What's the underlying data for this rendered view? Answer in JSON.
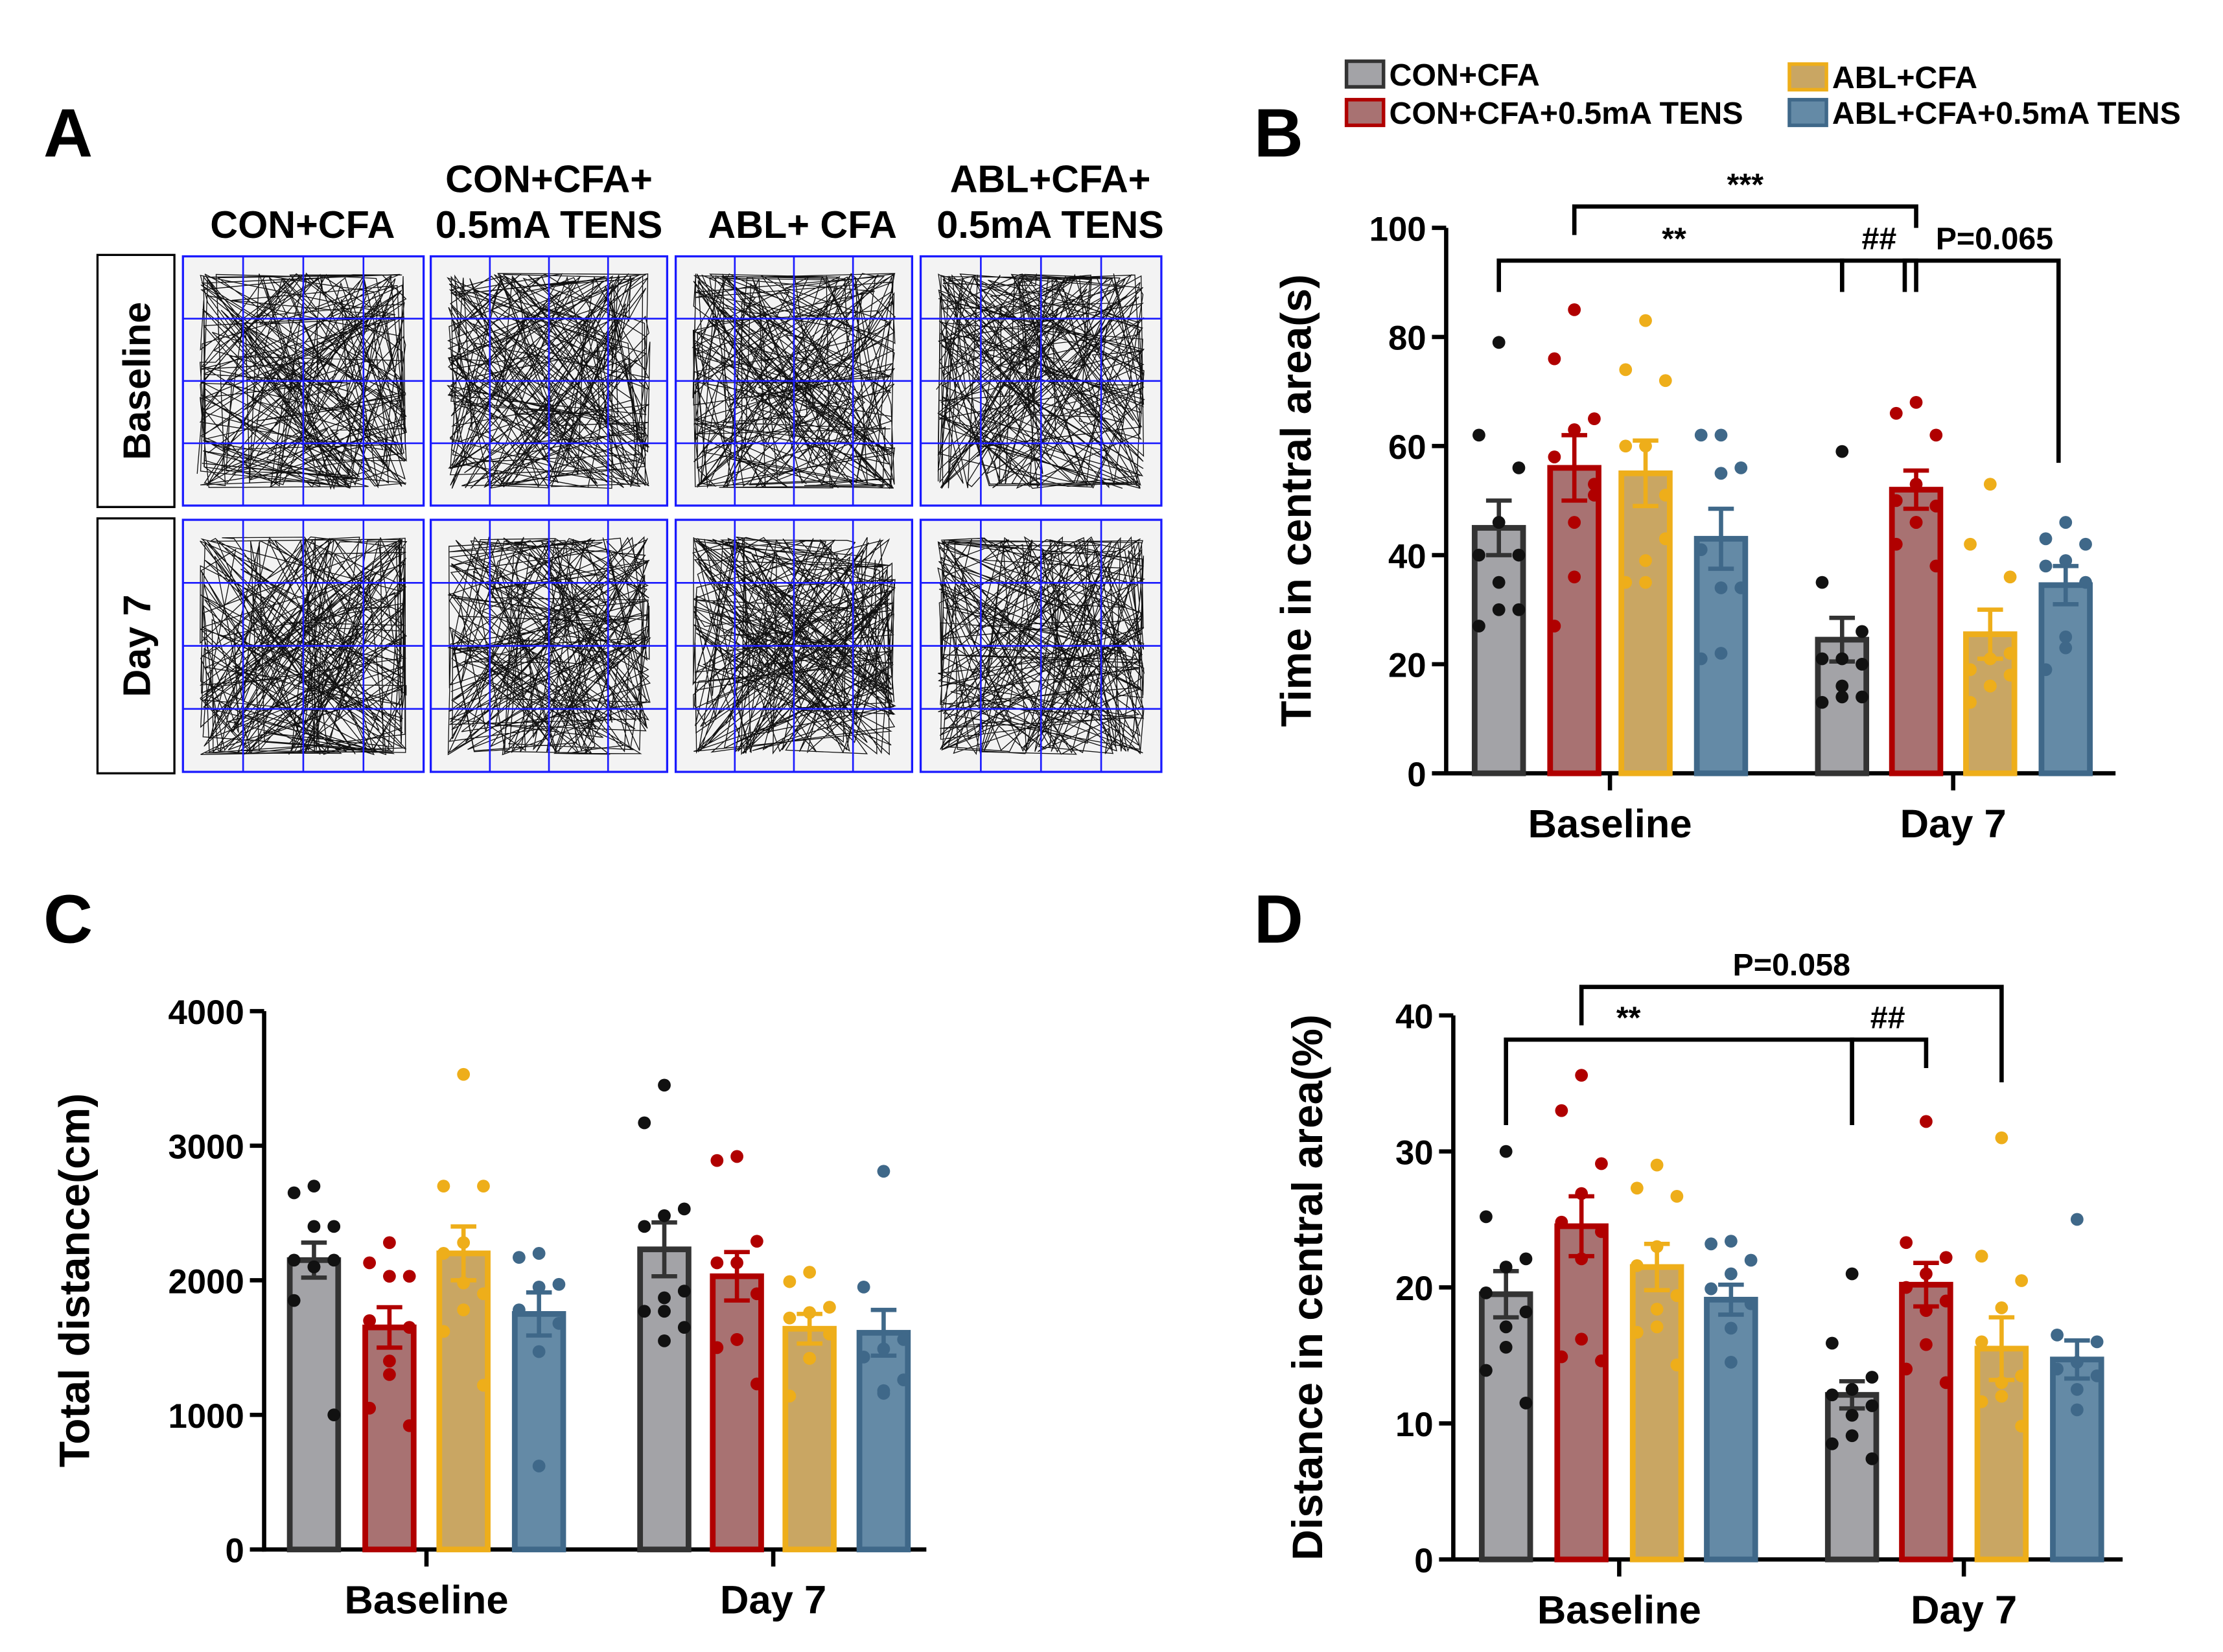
{
  "panel_labels": {
    "a": "A",
    "b": "B",
    "c": "C",
    "d": "D"
  },
  "panel_a": {
    "columns": [
      "CON+CFA",
      "CON+CFA+\n0.5mA TENS",
      "ABL+ CFA",
      "ABL+CFA+\n0.5mA TENS"
    ],
    "rows": [
      "Baseline",
      "Day 7"
    ],
    "grid_color": "#1a1aff"
  },
  "legend": {
    "items": [
      {
        "name": "CON+CFA",
        "fill": "#a3a3a7",
        "stroke": "#333333"
      },
      {
        "name": "CON+CFA+0.5mA TENS",
        "fill": "#a87272",
        "stroke": "#b00000"
      },
      {
        "name": "ABL+CFA",
        "fill": "#c9a663",
        "stroke": "#eeae1a"
      },
      {
        "name": "ABL+CFA+0.5mA TENS",
        "fill": "#648aa6",
        "stroke": "#3f6889"
      }
    ]
  },
  "dot_colors": [
    "#111111",
    "#b00000",
    "#eeae1a",
    "#3f6889"
  ],
  "chart_data": [
    {
      "panel": "B",
      "type": "bar",
      "ylabel": "Time in central area(s)",
      "ylim": [
        0,
        100
      ],
      "yticks": [
        0,
        20,
        40,
        60,
        80,
        100
      ],
      "categories": [
        "Baseline",
        "Day 7"
      ],
      "series": [
        {
          "name": "CON+CFA",
          "values": [
            45,
            24.5
          ],
          "sem": [
            5,
            4
          ],
          "points": [
            [
              79,
              62,
              56,
              46,
              40,
              40,
              35,
              30,
              27,
              30
            ],
            [
              59,
              35,
              26,
              21,
              21,
              20,
              16,
              14,
              13,
              14
            ]
          ]
        },
        {
          "name": "CON+CFA+0.5mA TENS",
          "values": [
            56,
            52
          ],
          "sem": [
            6,
            3.5
          ],
          "points": [
            [
              85,
              76,
              65,
              63,
              58,
              53,
              46,
              36,
              27,
              51
            ],
            [
              68,
              66,
              62,
              53,
              50,
              49,
              46,
              46,
              42,
              38
            ]
          ]
        },
        {
          "name": "ABL+CFA",
          "values": [
            55,
            25.5
          ],
          "sem": [
            6,
            4.5
          ],
          "points": [
            [
              83,
              74,
              72,
              60,
              60,
              43,
              39,
              35,
              35,
              51
            ],
            [
              53,
              42,
              36,
              21,
              19,
              18,
              16,
              16,
              13,
              22
            ]
          ]
        },
        {
          "name": "ABL+CFA+0.5mA TENS",
          "values": [
            43,
            34.5
          ],
          "sem": [
            5.5,
            3.5
          ],
          "points": [
            [
              62,
              62,
              56,
              55,
              41,
              34,
              34,
              22,
              21
            ],
            [
              46,
              43,
              42,
              39,
              38,
              35,
              25,
              23,
              19
            ]
          ]
        }
      ],
      "annotations": [
        {
          "text": "***",
          "from": [
            "Baseline",
            1
          ],
          "to": [
            "Day 7",
            1
          ]
        },
        {
          "text": "**",
          "from": [
            "Baseline",
            0
          ],
          "to": [
            "Day 7",
            0
          ]
        },
        {
          "text": "##",
          "from": [
            "Day 7",
            0
          ],
          "to": [
            "Day 7",
            1
          ]
        },
        {
          "text": "P=0.065",
          "from": [
            "Day 7",
            1
          ],
          "to": [
            "Day 7",
            3
          ]
        }
      ]
    },
    {
      "panel": "C",
      "type": "bar",
      "ylabel": "Total distance(cm)",
      "ylim": [
        0,
        4000
      ],
      "yticks": [
        0,
        1000,
        2000,
        3000,
        4000
      ],
      "categories": [
        "Baseline",
        "Day 7"
      ],
      "series": [
        {
          "name": "CON+CFA",
          "values": [
            2150,
            2230
          ],
          "sem": [
            130,
            200
          ],
          "points": [
            [
              2700,
              2650,
              2400,
              2400,
              2150,
              2150,
              2100,
              2100,
              1850,
              1000
            ],
            [
              3450,
              3170,
              2530,
              2480,
              2400,
              1920,
              1870,
              1770,
              1770,
              1650,
              1550
            ]
          ]
        },
        {
          "name": "CON+CFA+0.5mA TENS",
          "values": [
            1650,
            2030
          ],
          "sem": [
            150,
            180
          ],
          "points": [
            [
              2280,
              2130,
              2030,
              2030,
              1700,
              1650,
              1400,
              1300,
              1050,
              920
            ],
            [
              2920,
              2890,
              2290,
              2130,
              2130,
              1900,
              1560,
              1560,
              1500,
              1230
            ]
          ]
        },
        {
          "name": "ABL+CFA",
          "values": [
            2200,
            1640
          ],
          "sem": [
            200,
            110
          ],
          "points": [
            [
              3530,
              2700,
              2700,
              2280,
              2200,
              1900,
              1980,
              1780,
              1620,
              1220
            ],
            [
              2060,
              1990,
              1800,
              1760,
              1720,
              1600,
              1420,
              1420,
              1140
            ]
          ]
        },
        {
          "name": "ABL+CFA+0.5mA TENS",
          "values": [
            1750,
            1610
          ],
          "sem": [
            160,
            170
          ],
          "points": [
            [
              2200,
              2170,
              1970,
              1950,
              1780,
              1680,
              1470,
              620
            ],
            [
              2810,
              1950,
              1560,
              1490,
              1430,
              1260,
              1180,
              1160
            ]
          ]
        }
      ],
      "annotations": []
    },
    {
      "panel": "D",
      "type": "bar",
      "ylabel": "Distance in central area(%)",
      "ylim": [
        0,
        40
      ],
      "yticks": [
        0,
        10,
        20,
        30,
        40
      ],
      "categories": [
        "Baseline",
        "Day 7"
      ],
      "series": [
        {
          "name": "CON+CFA",
          "values": [
            19.5,
            12.1
          ],
          "sem": [
            1.7,
            1.0
          ],
          "points": [
            [
              30,
              25.2,
              22.1,
              21.5,
              19.6,
              18.2,
              17.1,
              15.6,
              13.9,
              11.5
            ],
            [
              21,
              15.9,
              13.4,
              12.5,
              12.1,
              11.3,
              10.6,
              9.1,
              8.5,
              7.4
            ]
          ]
        },
        {
          "name": "CON+CFA+0.5mA TENS",
          "values": [
            24.5,
            20.2
          ],
          "sem": [
            2.2,
            1.6
          ],
          "points": [
            [
              35.6,
              33,
              29.1,
              26.9,
              24.8,
              24.1,
              22.1,
              16.2,
              14.9,
              14.6
            ],
            [
              32.2,
              23.3,
              22.2,
              21,
              20,
              19,
              18.3,
              15.8,
              14,
              13
            ]
          ]
        },
        {
          "name": "ABL+CFA",
          "values": [
            21.5,
            15.5
          ],
          "sem": [
            1.7,
            2.3
          ],
          "points": [
            [
              29,
              27.3,
              26.7,
              23,
              21.6,
              19.4,
              18.4,
              17.1,
              16.7,
              14.3
            ],
            [
              31,
              22.3,
              20.5,
              18.5,
              16,
              13.5,
              13,
              12,
              11.6,
              9.8
            ]
          ]
        },
        {
          "name": "ABL+CFA+0.5mA TENS",
          "values": [
            19.1,
            14.7
          ],
          "sem": [
            1.1,
            1.4
          ],
          "points": [
            [
              23.4,
              23.2,
              22,
              21,
              19.9,
              18.8,
              17,
              14.5
            ],
            [
              25,
              16.5,
              16,
              14.5,
              14,
              13.5,
              12.5,
              11
            ]
          ]
        }
      ],
      "annotations": [
        {
          "text": "P=0.058",
          "from": [
            "Baseline",
            1
          ],
          "to": [
            "Day 7",
            2
          ]
        },
        {
          "text": "**",
          "from": [
            "Baseline",
            0
          ],
          "to": [
            "Day 7",
            0
          ]
        },
        {
          "text": "##",
          "from": [
            "Day 7",
            0
          ],
          "to": [
            "Day 7",
            1
          ]
        }
      ]
    }
  ]
}
